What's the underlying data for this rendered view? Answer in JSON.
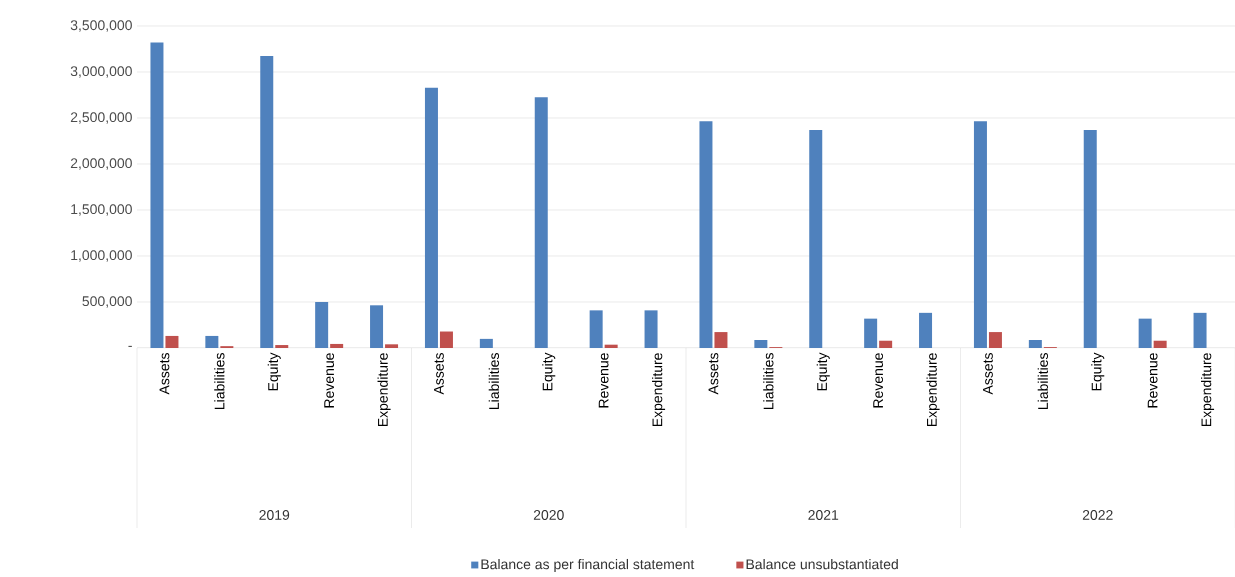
{
  "chart_data": {
    "type": "bar",
    "categories": [
      "Assets",
      "Liabilities",
      "Equity",
      "Revenue",
      "Expenditure",
      "Assets",
      "Liabilities",
      "Equity",
      "Revenue",
      "Expenditure",
      "Assets",
      "Liabilities",
      "Equity",
      "Revenue",
      "Expenditure",
      "Assets",
      "Liabilities",
      "Equity",
      "Revenue",
      "Expenditure"
    ],
    "series": [
      {
        "name": "Balance as per financial statement",
        "color": "#4f81bd",
        "values": [
          3320000,
          131000,
          3175000,
          500000,
          464000,
          2828000,
          99000,
          2725000,
          409000,
          409000,
          2465000,
          87000,
          2370000,
          319000,
          382000,
          2465000,
          87000,
          2370000,
          319000,
          382000
        ]
      },
      {
        "name": "Balance unsubstantiated",
        "color": "#c0504d",
        "values": [
          131000,
          20000,
          32000,
          44000,
          40000,
          179000,
          0,
          0,
          36000,
          0,
          173000,
          10000,
          0,
          79000,
          0,
          173000,
          10000,
          0,
          79000,
          0
        ]
      }
    ],
    "annotations": [
      "2019",
      "2020",
      "2021",
      "2022"
    ],
    "ylim": [
      0,
      3500000
    ],
    "yticks": [
      {
        "value": 0,
        "label": "-"
      },
      {
        "value": 500000,
        "label": "500,000"
      },
      {
        "value": 1000000,
        "label": "1,000,000"
      },
      {
        "value": 1500000,
        "label": "1,500,000"
      },
      {
        "value": 2000000,
        "label": "2,000,000"
      },
      {
        "value": 2500000,
        "label": "2,500,000"
      },
      {
        "value": 3000000,
        "label": "3,000,000"
      },
      {
        "value": 3500000,
        "label": "3,500,000"
      }
    ],
    "grid": "y",
    "legend": "bottom"
  }
}
